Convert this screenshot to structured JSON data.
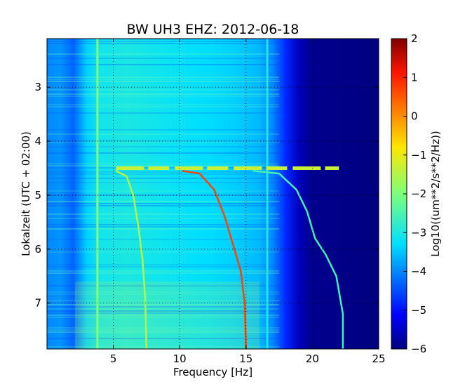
{
  "chart_data": {
    "type": "heatmap",
    "title": "BW UH3 EHZ: 2012-06-18",
    "xlabel": "Frequency [Hz]",
    "ylabel": "Lokalzeit (UTC + 02:00)",
    "xlim": [
      0,
      25
    ],
    "ylim": [
      7.85,
      2.1
    ],
    "xticks": [
      5,
      10,
      15,
      20,
      25
    ],
    "yticks": [
      3,
      4,
      5,
      6,
      7
    ],
    "grid": true,
    "colorbar": {
      "label": "Log10((um**2/s**2/Hz))",
      "ticks": [
        -6,
        -5,
        -4,
        -3,
        -2,
        -1,
        0,
        1,
        2
      ],
      "range": [
        -6,
        2
      ],
      "colormap": "jet"
    },
    "background_levels": [
      {
        "x": 0.0,
        "value": -4.0
      },
      {
        "x": 1.0,
        "value": -3.9
      },
      {
        "x": 2.0,
        "value": -4.3
      },
      {
        "x": 3.0,
        "value": -3.4
      },
      {
        "x": 4.0,
        "value": -3.1
      },
      {
        "x": 6.0,
        "value": -3.0
      },
      {
        "x": 8.0,
        "value": -3.1
      },
      {
        "x": 10.0,
        "value": -3.2
      },
      {
        "x": 12.0,
        "value": -3.3
      },
      {
        "x": 14.0,
        "value": -3.4
      },
      {
        "x": 16.0,
        "value": -3.6
      },
      {
        "x": 17.0,
        "value": -4.0
      },
      {
        "x": 18.0,
        "value": -4.8
      },
      {
        "x": 19.0,
        "value": -5.6
      },
      {
        "x": 20.0,
        "value": -5.9
      },
      {
        "x": 25.0,
        "value": -6.0
      }
    ],
    "lines": [
      {
        "type": "vertical",
        "x": 3.8,
        "value": -1.8
      },
      {
        "type": "vertical",
        "x": 16.6,
        "value": -3.0
      }
    ],
    "horizontal_line": {
      "y": 4.5,
      "x_range": [
        5.2,
        22.0
      ],
      "value": -1.3
    },
    "sweeps": [
      {
        "value": -1.5,
        "points": [
          [
            5.2,
            4.55
          ],
          [
            6.0,
            4.65
          ],
          [
            6.5,
            5.0
          ],
          [
            6.9,
            5.6
          ],
          [
            7.2,
            6.2
          ],
          [
            7.4,
            6.9
          ],
          [
            7.5,
            7.85
          ]
        ]
      },
      {
        "value": 0.7,
        "points": [
          [
            10.2,
            4.55
          ],
          [
            11.5,
            4.6
          ],
          [
            12.6,
            4.9
          ],
          [
            13.4,
            5.4
          ],
          [
            14.0,
            5.9
          ],
          [
            14.6,
            6.4
          ],
          [
            14.9,
            7.0
          ],
          [
            15.0,
            7.85
          ]
        ]
      },
      {
        "value": -2.6,
        "points": [
          [
            15.5,
            4.55
          ],
          [
            17.5,
            4.6
          ],
          [
            18.8,
            4.9
          ],
          [
            19.6,
            5.3
          ],
          [
            20.2,
            5.8
          ],
          [
            21.0,
            6.1
          ],
          [
            21.8,
            6.5
          ],
          [
            22.3,
            7.2
          ],
          [
            22.3,
            7.85
          ]
        ]
      }
    ]
  }
}
